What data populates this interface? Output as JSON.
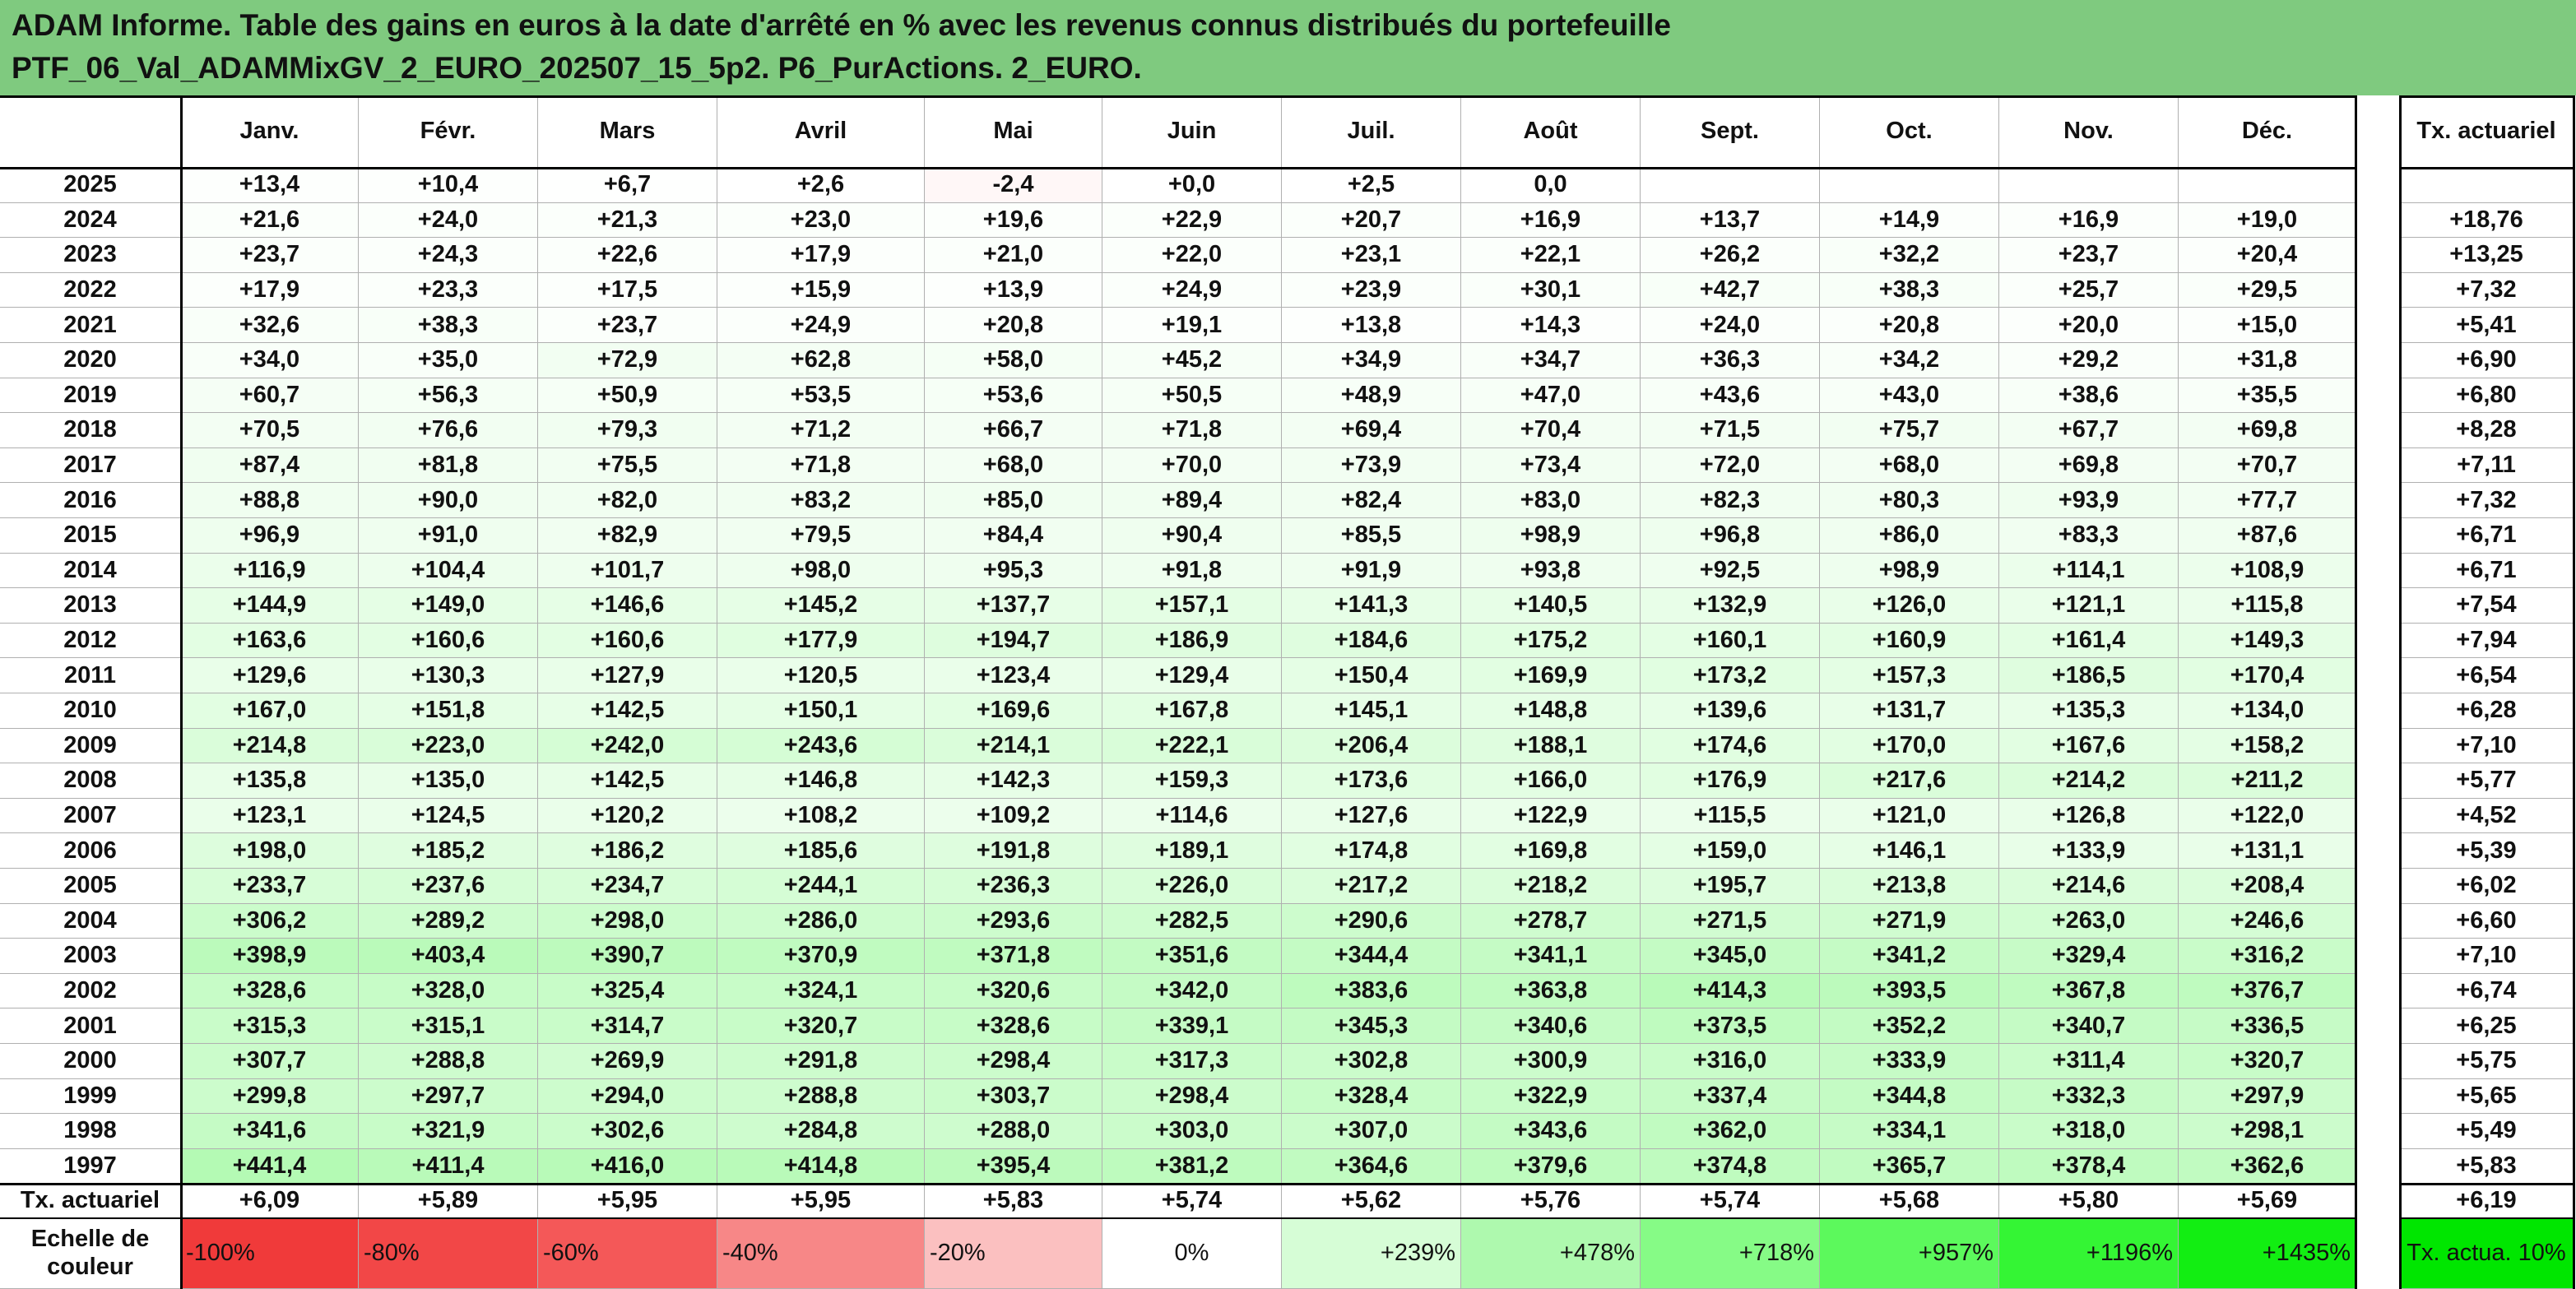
{
  "header": {
    "title_lines": [
      "ADAM Informe. Table des gains en euros à la date d'arrêté en % avec les revenus connus distribués du portefeuille",
      "PTF_06_Val_ADAMMixGV_2_EURO_202507_15_5p2. P6_PurActions. 2_EURO."
    ]
  },
  "table": {
    "columns": [
      "Janv.",
      "Févr.",
      "Mars",
      "Avril",
      "Mai",
      "Juin",
      "Juil.",
      "Août",
      "Sept.",
      "Oct.",
      "Nov.",
      "Déc."
    ],
    "rate_column": "Tx. actuariel",
    "rows": [
      {
        "label": "2025",
        "cells": [
          "+13,4",
          "+10,4",
          "+6,7",
          "+2,6",
          "-2,4",
          "+0,0",
          "+2,5",
          "0,0",
          null,
          null,
          null,
          null
        ],
        "rate": null
      },
      {
        "label": "2024",
        "cells": [
          "+21,6",
          "+24,0",
          "+21,3",
          "+23,0",
          "+19,6",
          "+22,9",
          "+20,7",
          "+16,9",
          "+13,7",
          "+14,9",
          "+16,9",
          "+19,0"
        ],
        "rate": "+18,76"
      },
      {
        "label": "2023",
        "cells": [
          "+23,7",
          "+24,3",
          "+22,6",
          "+17,9",
          "+21,0",
          "+22,0",
          "+23,1",
          "+22,1",
          "+26,2",
          "+32,2",
          "+23,7",
          "+20,4"
        ],
        "rate": "+13,25"
      },
      {
        "label": "2022",
        "cells": [
          "+17,9",
          "+23,3",
          "+17,5",
          "+15,9",
          "+13,9",
          "+24,9",
          "+23,9",
          "+30,1",
          "+42,7",
          "+38,3",
          "+25,7",
          "+29,5"
        ],
        "rate": "+7,32"
      },
      {
        "label": "2021",
        "cells": [
          "+32,6",
          "+38,3",
          "+23,7",
          "+24,9",
          "+20,8",
          "+19,1",
          "+13,8",
          "+14,3",
          "+24,0",
          "+20,8",
          "+20,0",
          "+15,0"
        ],
        "rate": "+5,41"
      },
      {
        "label": "2020",
        "cells": [
          "+34,0",
          "+35,0",
          "+72,9",
          "+62,8",
          "+58,0",
          "+45,2",
          "+34,9",
          "+34,7",
          "+36,3",
          "+34,2",
          "+29,2",
          "+31,8"
        ],
        "rate": "+6,90"
      },
      {
        "label": "2019",
        "cells": [
          "+60,7",
          "+56,3",
          "+50,9",
          "+53,5",
          "+53,6",
          "+50,5",
          "+48,9",
          "+47,0",
          "+43,6",
          "+43,0",
          "+38,6",
          "+35,5"
        ],
        "rate": "+6,80"
      },
      {
        "label": "2018",
        "cells": [
          "+70,5",
          "+76,6",
          "+79,3",
          "+71,2",
          "+66,7",
          "+71,8",
          "+69,4",
          "+70,4",
          "+71,5",
          "+75,7",
          "+67,7",
          "+69,8"
        ],
        "rate": "+8,28"
      },
      {
        "label": "2017",
        "cells": [
          "+87,4",
          "+81,8",
          "+75,5",
          "+71,8",
          "+68,0",
          "+70,0",
          "+73,9",
          "+73,4",
          "+72,0",
          "+68,0",
          "+69,8",
          "+70,7"
        ],
        "rate": "+7,11"
      },
      {
        "label": "2016",
        "cells": [
          "+88,8",
          "+90,0",
          "+82,0",
          "+83,2",
          "+85,0",
          "+89,4",
          "+82,4",
          "+83,0",
          "+82,3",
          "+80,3",
          "+93,9",
          "+77,7"
        ],
        "rate": "+7,32"
      },
      {
        "label": "2015",
        "cells": [
          "+96,9",
          "+91,0",
          "+82,9",
          "+79,5",
          "+84,4",
          "+90,4",
          "+85,5",
          "+98,9",
          "+96,8",
          "+86,0",
          "+83,3",
          "+87,6"
        ],
        "rate": "+6,71"
      },
      {
        "label": "2014",
        "cells": [
          "+116,9",
          "+104,4",
          "+101,7",
          "+98,0",
          "+95,3",
          "+91,8",
          "+91,9",
          "+93,8",
          "+92,5",
          "+98,9",
          "+114,1",
          "+108,9"
        ],
        "rate": "+6,71"
      },
      {
        "label": "2013",
        "cells": [
          "+144,9",
          "+149,0",
          "+146,6",
          "+145,2",
          "+137,7",
          "+157,1",
          "+141,3",
          "+140,5",
          "+132,9",
          "+126,0",
          "+121,1",
          "+115,8"
        ],
        "rate": "+7,54"
      },
      {
        "label": "2012",
        "cells": [
          "+163,6",
          "+160,6",
          "+160,6",
          "+177,9",
          "+194,7",
          "+186,9",
          "+184,6",
          "+175,2",
          "+160,1",
          "+160,9",
          "+161,4",
          "+149,3"
        ],
        "rate": "+7,94"
      },
      {
        "label": "2011",
        "cells": [
          "+129,6",
          "+130,3",
          "+127,9",
          "+120,5",
          "+123,4",
          "+129,4",
          "+150,4",
          "+169,9",
          "+173,2",
          "+157,3",
          "+186,5",
          "+170,4"
        ],
        "rate": "+6,54"
      },
      {
        "label": "2010",
        "cells": [
          "+167,0",
          "+151,8",
          "+142,5",
          "+150,1",
          "+169,6",
          "+167,8",
          "+145,1",
          "+148,8",
          "+139,6",
          "+131,7",
          "+135,3",
          "+134,0"
        ],
        "rate": "+6,28"
      },
      {
        "label": "2009",
        "cells": [
          "+214,8",
          "+223,0",
          "+242,0",
          "+243,6",
          "+214,1",
          "+222,1",
          "+206,4",
          "+188,1",
          "+174,6",
          "+170,0",
          "+167,6",
          "+158,2"
        ],
        "rate": "+7,10"
      },
      {
        "label": "2008",
        "cells": [
          "+135,8",
          "+135,0",
          "+142,5",
          "+146,8",
          "+142,3",
          "+159,3",
          "+173,6",
          "+166,0",
          "+176,9",
          "+217,6",
          "+214,2",
          "+211,2"
        ],
        "rate": "+5,77"
      },
      {
        "label": "2007",
        "cells": [
          "+123,1",
          "+124,5",
          "+120,2",
          "+108,2",
          "+109,2",
          "+114,6",
          "+127,6",
          "+122,9",
          "+115,5",
          "+121,0",
          "+126,8",
          "+122,0"
        ],
        "rate": "+4,52"
      },
      {
        "label": "2006",
        "cells": [
          "+198,0",
          "+185,2",
          "+186,2",
          "+185,6",
          "+191,8",
          "+189,1",
          "+174,8",
          "+169,8",
          "+159,0",
          "+146,1",
          "+133,9",
          "+131,1"
        ],
        "rate": "+5,39"
      },
      {
        "label": "2005",
        "cells": [
          "+233,7",
          "+237,6",
          "+234,7",
          "+244,1",
          "+236,3",
          "+226,0",
          "+217,2",
          "+218,2",
          "+195,7",
          "+213,8",
          "+214,6",
          "+208,4"
        ],
        "rate": "+6,02"
      },
      {
        "label": "2004",
        "cells": [
          "+306,2",
          "+289,2",
          "+298,0",
          "+286,0",
          "+293,6",
          "+282,5",
          "+290,6",
          "+278,7",
          "+271,5",
          "+271,9",
          "+263,0",
          "+246,6"
        ],
        "rate": "+6,60"
      },
      {
        "label": "2003",
        "cells": [
          "+398,9",
          "+403,4",
          "+390,7",
          "+370,9",
          "+371,8",
          "+351,6",
          "+344,4",
          "+341,1",
          "+345,0",
          "+341,2",
          "+329,4",
          "+316,2"
        ],
        "rate": "+7,10"
      },
      {
        "label": "2002",
        "cells": [
          "+328,6",
          "+328,0",
          "+325,4",
          "+324,1",
          "+320,6",
          "+342,0",
          "+383,6",
          "+363,8",
          "+414,3",
          "+393,5",
          "+367,8",
          "+376,7"
        ],
        "rate": "+6,74"
      },
      {
        "label": "2001",
        "cells": [
          "+315,3",
          "+315,1",
          "+314,7",
          "+320,7",
          "+328,6",
          "+339,1",
          "+345,3",
          "+340,6",
          "+373,5",
          "+352,2",
          "+340,7",
          "+336,5"
        ],
        "rate": "+6,25"
      },
      {
        "label": "2000",
        "cells": [
          "+307,7",
          "+288,8",
          "+269,9",
          "+291,8",
          "+298,4",
          "+317,3",
          "+302,8",
          "+300,9",
          "+316,0",
          "+333,9",
          "+311,4",
          "+320,7"
        ],
        "rate": "+5,75"
      },
      {
        "label": "1999",
        "cells": [
          "+299,8",
          "+297,7",
          "+294,0",
          "+288,8",
          "+303,7",
          "+298,4",
          "+328,4",
          "+322,9",
          "+337,4",
          "+344,8",
          "+332,3",
          "+297,9"
        ],
        "rate": "+5,65"
      },
      {
        "label": "1998",
        "cells": [
          "+341,6",
          "+321,9",
          "+302,6",
          "+284,8",
          "+288,0",
          "+303,0",
          "+307,0",
          "+343,6",
          "+362,0",
          "+334,1",
          "+318,0",
          "+298,1"
        ],
        "rate": "+5,49"
      },
      {
        "label": "1997",
        "cells": [
          "+441,4",
          "+411,4",
          "+416,0",
          "+414,8",
          "+395,4",
          "+381,2",
          "+364,6",
          "+379,6",
          "+374,8",
          "+365,7",
          "+378,4",
          "+362,6"
        ],
        "rate": "+5,83"
      }
    ],
    "footer": {
      "label": "Tx. actuariel",
      "cells": [
        "+6,09",
        "+5,89",
        "+5,95",
        "+5,95",
        "+5,83",
        "+5,74",
        "+5,62",
        "+5,76",
        "+5,74",
        "+5,68",
        "+5,80",
        "+5,69"
      ],
      "rate": "+6,19"
    },
    "scale": {
      "label": "Echelle de couleur",
      "stops": [
        {
          "value": -100,
          "label": "-100%",
          "color": "#f03a3a"
        },
        {
          "value": -80,
          "label": "-80%",
          "color": "#f24747"
        },
        {
          "value": -60,
          "label": "-60%",
          "color": "#f45858"
        },
        {
          "value": -40,
          "label": "-40%",
          "color": "#f78787"
        },
        {
          "value": -20,
          "label": "-20%",
          "color": "#fbc0c0"
        },
        {
          "value": 0,
          "label": "0%",
          "color": "#ffffff"
        },
        {
          "value": 239,
          "label": "+239%",
          "color": "#d6fdd6"
        },
        {
          "value": 478,
          "label": "+478%",
          "color": "#aef9ae"
        },
        {
          "value": 718,
          "label": "+718%",
          "color": "#86fb86"
        },
        {
          "value": 957,
          "label": "+957%",
          "color": "#5cf95c"
        },
        {
          "value": 1196,
          "label": "+1196%",
          "color": "#34f534"
        },
        {
          "value": 1435,
          "label": "+1435%",
          "color": "#12ee12"
        }
      ],
      "rate_cell": {
        "label": "Tx. actua. 10%",
        "color": "#00e600"
      }
    }
  }
}
